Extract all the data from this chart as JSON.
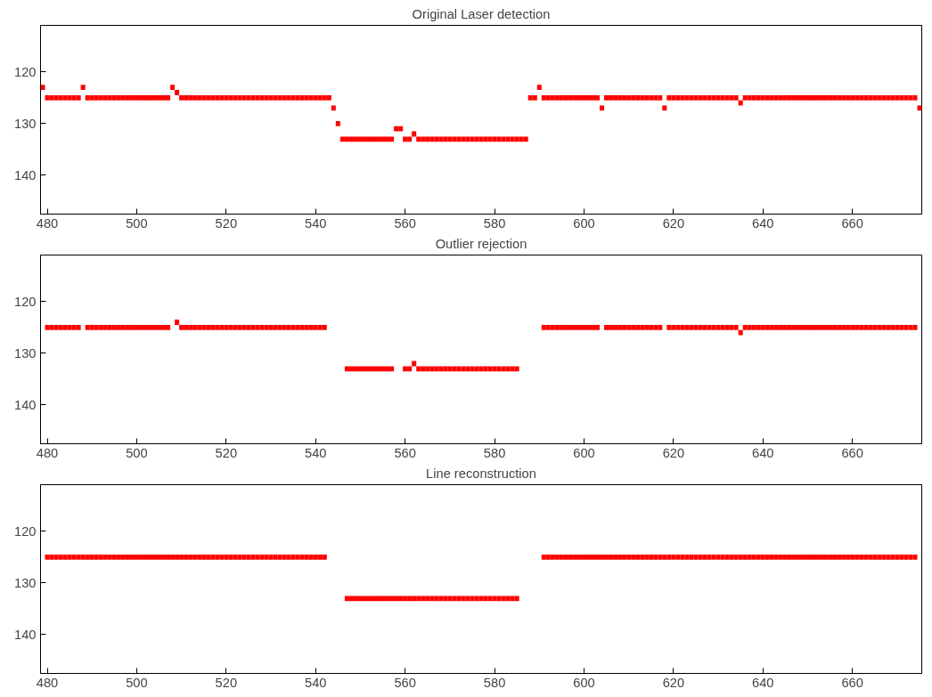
{
  "chart_data": [
    {
      "type": "scatter",
      "title": "Original Laser detection",
      "marker": "square",
      "xlim": [
        478.5,
        675.5
      ],
      "ylim": [
        147.5,
        111
      ],
      "xticks": [
        480,
        500,
        520,
        540,
        560,
        580,
        600,
        620,
        640,
        660
      ],
      "yticks": [
        120,
        130,
        140
      ],
      "series": [
        {
          "color": "#ff0000",
          "x": [
            479,
            480,
            481,
            482,
            483,
            484,
            485,
            486,
            487,
            488,
            489,
            490,
            491,
            492,
            493,
            494,
            495,
            496,
            497,
            498,
            499,
            500,
            501,
            502,
            503,
            504,
            505,
            506,
            507,
            508,
            509,
            510,
            511,
            512,
            513,
            514,
            515,
            516,
            517,
            518,
            519,
            520,
            521,
            522,
            523,
            524,
            525,
            526,
            527,
            528,
            529,
            530,
            531,
            532,
            533,
            534,
            535,
            536,
            537,
            538,
            539,
            540,
            541,
            542,
            543,
            544,
            545,
            546,
            547,
            548,
            549,
            550,
            551,
            552,
            553,
            554,
            555,
            556,
            557,
            558,
            559,
            560,
            561,
            562,
            563,
            564,
            565,
            566,
            567,
            568,
            569,
            570,
            571,
            572,
            573,
            574,
            575,
            576,
            577,
            578,
            579,
            580,
            581,
            582,
            583,
            584,
            585,
            586,
            587,
            588,
            589,
            590,
            591,
            592,
            593,
            594,
            595,
            596,
            597,
            598,
            599,
            600,
            601,
            602,
            603,
            604,
            605,
            606,
            607,
            608,
            609,
            610,
            611,
            612,
            613,
            614,
            615,
            616,
            617,
            618,
            619,
            620,
            621,
            622,
            623,
            624,
            625,
            626,
            627,
            628,
            629,
            630,
            631,
            632,
            633,
            634,
            635,
            636,
            637,
            638,
            639,
            640,
            641,
            642,
            643,
            644,
            645,
            646,
            647,
            648,
            649,
            650,
            651,
            652,
            653,
            654,
            655,
            656,
            657,
            658,
            659,
            660,
            661,
            662,
            663,
            664,
            665,
            666,
            667,
            668,
            669,
            670,
            671,
            672,
            673,
            674,
            675
          ],
          "values": [
            123,
            125,
            125,
            125,
            125,
            125,
            125,
            125,
            125,
            123,
            125,
            125,
            125,
            125,
            125,
            125,
            125,
            125,
            125,
            125,
            125,
            125,
            125,
            125,
            125,
            125,
            125,
            125,
            125,
            123,
            124,
            125,
            125,
            125,
            125,
            125,
            125,
            125,
            125,
            125,
            125,
            125,
            125,
            125,
            125,
            125,
            125,
            125,
            125,
            125,
            125,
            125,
            125,
            125,
            125,
            125,
            125,
            125,
            125,
            125,
            125,
            125,
            125,
            125,
            125,
            127,
            130,
            133,
            133,
            133,
            133,
            133,
            133,
            133,
            133,
            133,
            133,
            133,
            133,
            131,
            131,
            133,
            133,
            132,
            133,
            133,
            133,
            133,
            133,
            133,
            133,
            133,
            133,
            133,
            133,
            133,
            133,
            133,
            133,
            133,
            133,
            133,
            133,
            133,
            133,
            133,
            133,
            133,
            133,
            125,
            125,
            123,
            125,
            125,
            125,
            125,
            125,
            125,
            125,
            125,
            125,
            125,
            125,
            125,
            125,
            127,
            125,
            125,
            125,
            125,
            125,
            125,
            125,
            125,
            125,
            125,
            125,
            125,
            125,
            127,
            125,
            125,
            125,
            125,
            125,
            125,
            125,
            125,
            125,
            125,
            125,
            125,
            125,
            125,
            125,
            125,
            126,
            125,
            125,
            125,
            125,
            125,
            125,
            125,
            125,
            125,
            125,
            125,
            125,
            125,
            125,
            125,
            125,
            125,
            125,
            125,
            125,
            125,
            125,
            125,
            125,
            125,
            125,
            125,
            125,
            125,
            125,
            125,
            125,
            125,
            125,
            125,
            125,
            125,
            125,
            125,
            127
          ]
        }
      ]
    },
    {
      "type": "scatter",
      "title": "Outlier rejection",
      "marker": "square",
      "xlim": [
        478.5,
        675.5
      ],
      "ylim": [
        147.5,
        111
      ],
      "xticks": [
        480,
        500,
        520,
        540,
        560,
        580,
        600,
        620,
        640,
        660
      ],
      "yticks": [
        120,
        130,
        140
      ],
      "series": [
        {
          "color": "#ff0000",
          "x": [
            480,
            481,
            482,
            483,
            484,
            485,
            486,
            487,
            489,
            490,
            491,
            492,
            493,
            494,
            495,
            496,
            497,
            498,
            499,
            500,
            501,
            502,
            503,
            504,
            505,
            506,
            507,
            509,
            510,
            511,
            512,
            513,
            514,
            515,
            516,
            517,
            518,
            519,
            520,
            521,
            522,
            523,
            524,
            525,
            526,
            527,
            528,
            529,
            530,
            531,
            532,
            533,
            534,
            535,
            536,
            537,
            538,
            539,
            540,
            541,
            542,
            547,
            548,
            549,
            550,
            551,
            552,
            553,
            554,
            555,
            556,
            557,
            560,
            561,
            562,
            563,
            564,
            565,
            566,
            567,
            568,
            569,
            570,
            571,
            572,
            573,
            574,
            575,
            576,
            577,
            578,
            579,
            580,
            581,
            582,
            583,
            584,
            585,
            591,
            592,
            593,
            594,
            595,
            596,
            597,
            598,
            599,
            600,
            601,
            602,
            603,
            605,
            606,
            607,
            608,
            609,
            610,
            611,
            612,
            613,
            614,
            615,
            616,
            617,
            619,
            620,
            621,
            622,
            623,
            624,
            625,
            626,
            627,
            628,
            629,
            630,
            631,
            632,
            633,
            634,
            635,
            636,
            637,
            638,
            639,
            640,
            641,
            642,
            643,
            644,
            645,
            646,
            647,
            648,
            649,
            650,
            651,
            652,
            653,
            654,
            655,
            656,
            657,
            658,
            659,
            660,
            661,
            662,
            663,
            664,
            665,
            666,
            667,
            668,
            669,
            670,
            671,
            672,
            673,
            674
          ],
          "values": [
            125,
            125,
            125,
            125,
            125,
            125,
            125,
            125,
            125,
            125,
            125,
            125,
            125,
            125,
            125,
            125,
            125,
            125,
            125,
            125,
            125,
            125,
            125,
            125,
            125,
            125,
            125,
            124,
            125,
            125,
            125,
            125,
            125,
            125,
            125,
            125,
            125,
            125,
            125,
            125,
            125,
            125,
            125,
            125,
            125,
            125,
            125,
            125,
            125,
            125,
            125,
            125,
            125,
            125,
            125,
            125,
            125,
            125,
            125,
            125,
            125,
            133,
            133,
            133,
            133,
            133,
            133,
            133,
            133,
            133,
            133,
            133,
            133,
            133,
            132,
            133,
            133,
            133,
            133,
            133,
            133,
            133,
            133,
            133,
            133,
            133,
            133,
            133,
            133,
            133,
            133,
            133,
            133,
            133,
            133,
            133,
            133,
            133,
            125,
            125,
            125,
            125,
            125,
            125,
            125,
            125,
            125,
            125,
            125,
            125,
            125,
            125,
            125,
            125,
            125,
            125,
            125,
            125,
            125,
            125,
            125,
            125,
            125,
            125,
            125,
            125,
            125,
            125,
            125,
            125,
            125,
            125,
            125,
            125,
            125,
            125,
            125,
            125,
            125,
            125,
            126,
            125,
            125,
            125,
            125,
            125,
            125,
            125,
            125,
            125,
            125,
            125,
            125,
            125,
            125,
            125,
            125,
            125,
            125,
            125,
            125,
            125,
            125,
            125,
            125,
            125,
            125,
            125,
            125,
            125,
            125,
            125,
            125,
            125,
            125,
            125,
            125,
            125,
            125,
            125
          ]
        }
      ]
    },
    {
      "type": "scatter",
      "title": "Line reconstruction",
      "marker": "square",
      "xlim": [
        478.5,
        675.5
      ],
      "ylim": [
        147.5,
        111
      ],
      "xticks": [
        480,
        500,
        520,
        540,
        560,
        580,
        600,
        620,
        640,
        660
      ],
      "yticks": [
        120,
        130,
        140
      ],
      "series": [
        {
          "color": "#ff0000",
          "x": [
            480,
            481,
            482,
            483,
            484,
            485,
            486,
            487,
            488,
            489,
            490,
            491,
            492,
            493,
            494,
            495,
            496,
            497,
            498,
            499,
            500,
            501,
            502,
            503,
            504,
            505,
            506,
            507,
            508,
            509,
            510,
            511,
            512,
            513,
            514,
            515,
            516,
            517,
            518,
            519,
            520,
            521,
            522,
            523,
            524,
            525,
            526,
            527,
            528,
            529,
            530,
            531,
            532,
            533,
            534,
            535,
            536,
            537,
            538,
            539,
            540,
            541,
            542,
            547,
            548,
            549,
            550,
            551,
            552,
            553,
            554,
            555,
            556,
            557,
            558,
            559,
            560,
            561,
            562,
            563,
            564,
            565,
            566,
            567,
            568,
            569,
            570,
            571,
            572,
            573,
            574,
            575,
            576,
            577,
            578,
            579,
            580,
            581,
            582,
            583,
            584,
            585,
            591,
            592,
            593,
            594,
            595,
            596,
            597,
            598,
            599,
            600,
            601,
            602,
            603,
            604,
            605,
            606,
            607,
            608,
            609,
            610,
            611,
            612,
            613,
            614,
            615,
            616,
            617,
            618,
            619,
            620,
            621,
            622,
            623,
            624,
            625,
            626,
            627,
            628,
            629,
            630,
            631,
            632,
            633,
            634,
            635,
            636,
            637,
            638,
            639,
            640,
            641,
            642,
            643,
            644,
            645,
            646,
            647,
            648,
            649,
            650,
            651,
            652,
            653,
            654,
            655,
            656,
            657,
            658,
            659,
            660,
            661,
            662,
            663,
            664,
            665,
            666,
            667,
            668,
            669,
            670,
            671,
            672,
            673,
            674
          ],
          "values": [
            125,
            125,
            125,
            125,
            125,
            125,
            125,
            125,
            125,
            125,
            125,
            125,
            125,
            125,
            125,
            125,
            125,
            125,
            125,
            125,
            125,
            125,
            125,
            125,
            125,
            125,
            125,
            125,
            125,
            125,
            125,
            125,
            125,
            125,
            125,
            125,
            125,
            125,
            125,
            125,
            125,
            125,
            125,
            125,
            125,
            125,
            125,
            125,
            125,
            125,
            125,
            125,
            125,
            125,
            125,
            125,
            125,
            125,
            125,
            125,
            125,
            125,
            125,
            133,
            133,
            133,
            133,
            133,
            133,
            133,
            133,
            133,
            133,
            133,
            133,
            133,
            133,
            133,
            133,
            133,
            133,
            133,
            133,
            133,
            133,
            133,
            133,
            133,
            133,
            133,
            133,
            133,
            133,
            133,
            133,
            133,
            133,
            133,
            133,
            133,
            133,
            133,
            125,
            125,
            125,
            125,
            125,
            125,
            125,
            125,
            125,
            125,
            125,
            125,
            125,
            125,
            125,
            125,
            125,
            125,
            125,
            125,
            125,
            125,
            125,
            125,
            125,
            125,
            125,
            125,
            125,
            125,
            125,
            125,
            125,
            125,
            125,
            125,
            125,
            125,
            125,
            125,
            125,
            125,
            125,
            125,
            125,
            125,
            125,
            125,
            125,
            125,
            125,
            125,
            125,
            125,
            125,
            125,
            125,
            125,
            125,
            125,
            125,
            125,
            125,
            125,
            125,
            125,
            125,
            125,
            125,
            125,
            125,
            125,
            125,
            125,
            125,
            125,
            125,
            125,
            125,
            125,
            125,
            125,
            125,
            125
          ]
        }
      ]
    }
  ]
}
